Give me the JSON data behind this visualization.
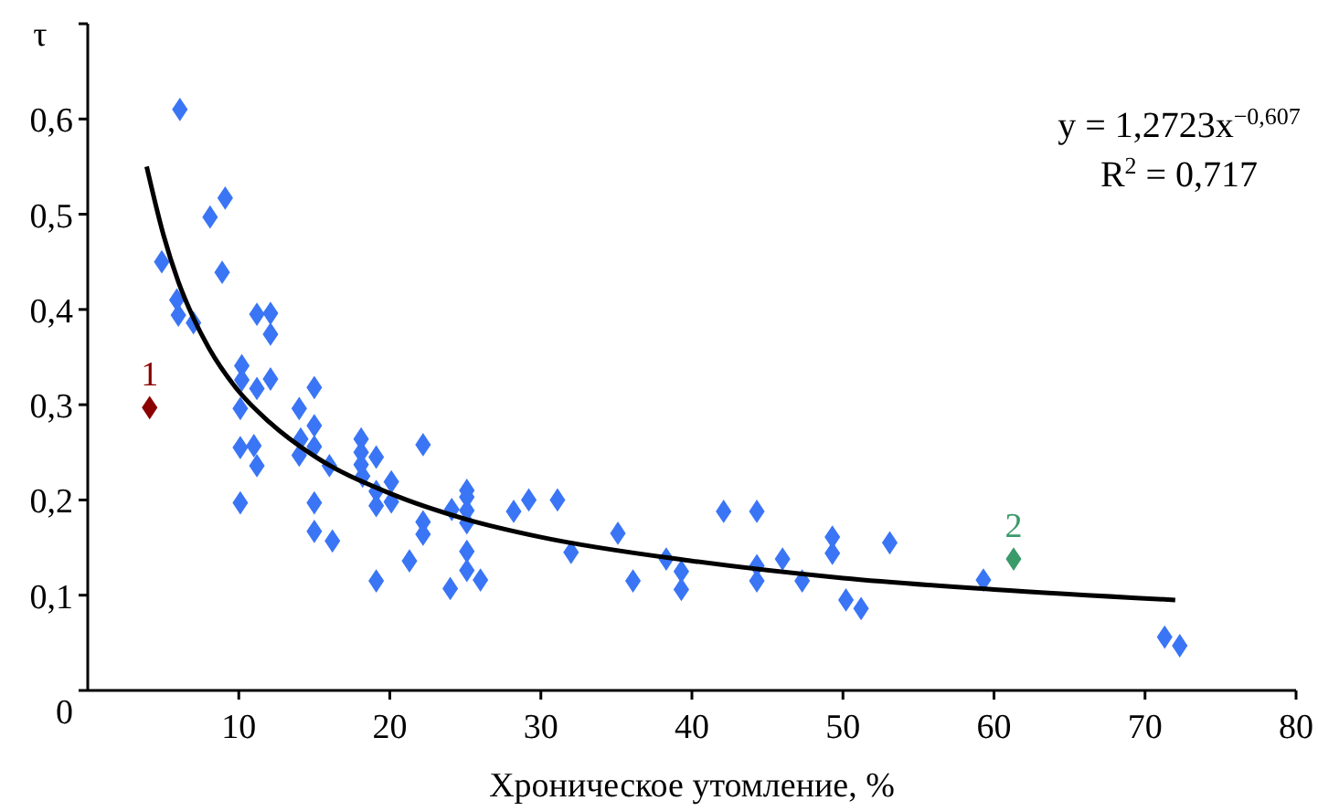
{
  "chart_data": {
    "type": "scatter",
    "xlabel": "Хроническое утомление, %",
    "ylabel": "τ",
    "marker": "diamond",
    "grid": false,
    "xlim": [
      0,
      80
    ],
    "xticks": [
      10,
      20,
      30,
      40,
      50,
      60,
      70,
      80
    ],
    "ylim": [
      0,
      0.7
    ],
    "yticks": [
      {
        "value": 0,
        "label": "0"
      },
      {
        "value": 0.1,
        "label": "0,1"
      },
      {
        "value": 0.2,
        "label": "0,2"
      },
      {
        "value": 0.3,
        "label": "0,3"
      },
      {
        "value": 0.4,
        "label": "0,4"
      },
      {
        "value": 0.5,
        "label": "0,5"
      },
      {
        "value": 0.6,
        "label": "0,6"
      },
      {
        "value": 0.7,
        "label": null
      }
    ],
    "annotations": [
      "y = 1,2723x$^{−0,607}$",
      "R$^{2}$ = 0,717"
    ],
    "series": [
      {
        "color": "#3a75f5",
        "x": [
          6.1,
          4.9,
          5.9,
          6.0,
          7.0,
          8.1,
          9.1,
          8.9,
          11.2,
          12.1,
          12.1,
          10.2,
          10.2,
          11.2,
          12.1,
          10.1,
          10.1,
          11.0,
          11.2,
          10.1,
          14.0,
          15.0,
          15.0,
          14.1,
          14.0,
          15.0,
          16.0,
          15.0,
          15.0,
          16.2,
          18.1,
          18.1,
          18.1,
          18.2,
          19.1,
          19.1,
          19.1,
          20.1,
          20.1,
          19.1,
          21.3,
          22.2,
          22.2,
          22.2,
          24.0,
          24.1,
          25.1,
          25.1,
          25.1,
          25.1,
          25.1,
          25.1,
          26.0,
          28.2,
          29.2,
          31.1,
          32.0,
          35.1,
          36.1,
          38.3,
          39.3,
          39.3,
          42.1,
          44.3,
          44.3,
          44.3,
          46.0,
          47.3,
          49.3,
          49.3,
          50.2,
          51.2,
          53.1,
          59.3,
          71.3,
          72.3
        ],
        "values": [
          0.61,
          0.45,
          0.41,
          0.394,
          0.386,
          0.497,
          0.517,
          0.439,
          0.395,
          0.396,
          0.374,
          0.341,
          0.326,
          0.317,
          0.327,
          0.296,
          0.255,
          0.257,
          0.236,
          0.197,
          0.296,
          0.318,
          0.278,
          0.264,
          0.247,
          0.256,
          0.236,
          0.197,
          0.167,
          0.157,
          0.264,
          0.25,
          0.237,
          0.225,
          0.245,
          0.209,
          0.194,
          0.219,
          0.198,
          0.115,
          0.136,
          0.258,
          0.177,
          0.164,
          0.107,
          0.19,
          0.21,
          0.203,
          0.189,
          0.176,
          0.146,
          0.126,
          0.116,
          0.188,
          0.2,
          0.2,
          0.145,
          0.165,
          0.115,
          0.138,
          0.125,
          0.106,
          0.188,
          0.188,
          0.131,
          0.115,
          0.138,
          0.115,
          0.161,
          0.144,
          0.095,
          0.086,
          0.155,
          0.116,
          0.056,
          0.047
        ]
      },
      {
        "name": "1",
        "color": "#8b0000",
        "x": [
          4.1
        ],
        "values": [
          0.297
        ]
      },
      {
        "name": "2",
        "color": "#3a9a6a",
        "x": [
          61.3
        ],
        "values": [
          0.138
        ]
      },
      {
        "type": "line",
        "color": "#000000",
        "marker": "none",
        "x": [
          3.9,
          5,
          6,
          7,
          8,
          10,
          12,
          15,
          20,
          25,
          30,
          40,
          50,
          60,
          72
        ],
        "values": [
          0.55,
          0.479,
          0.429,
          0.391,
          0.36,
          0.314,
          0.282,
          0.246,
          0.207,
          0.18,
          0.161,
          0.136,
          0.118,
          0.106,
          0.095
        ]
      }
    ]
  }
}
